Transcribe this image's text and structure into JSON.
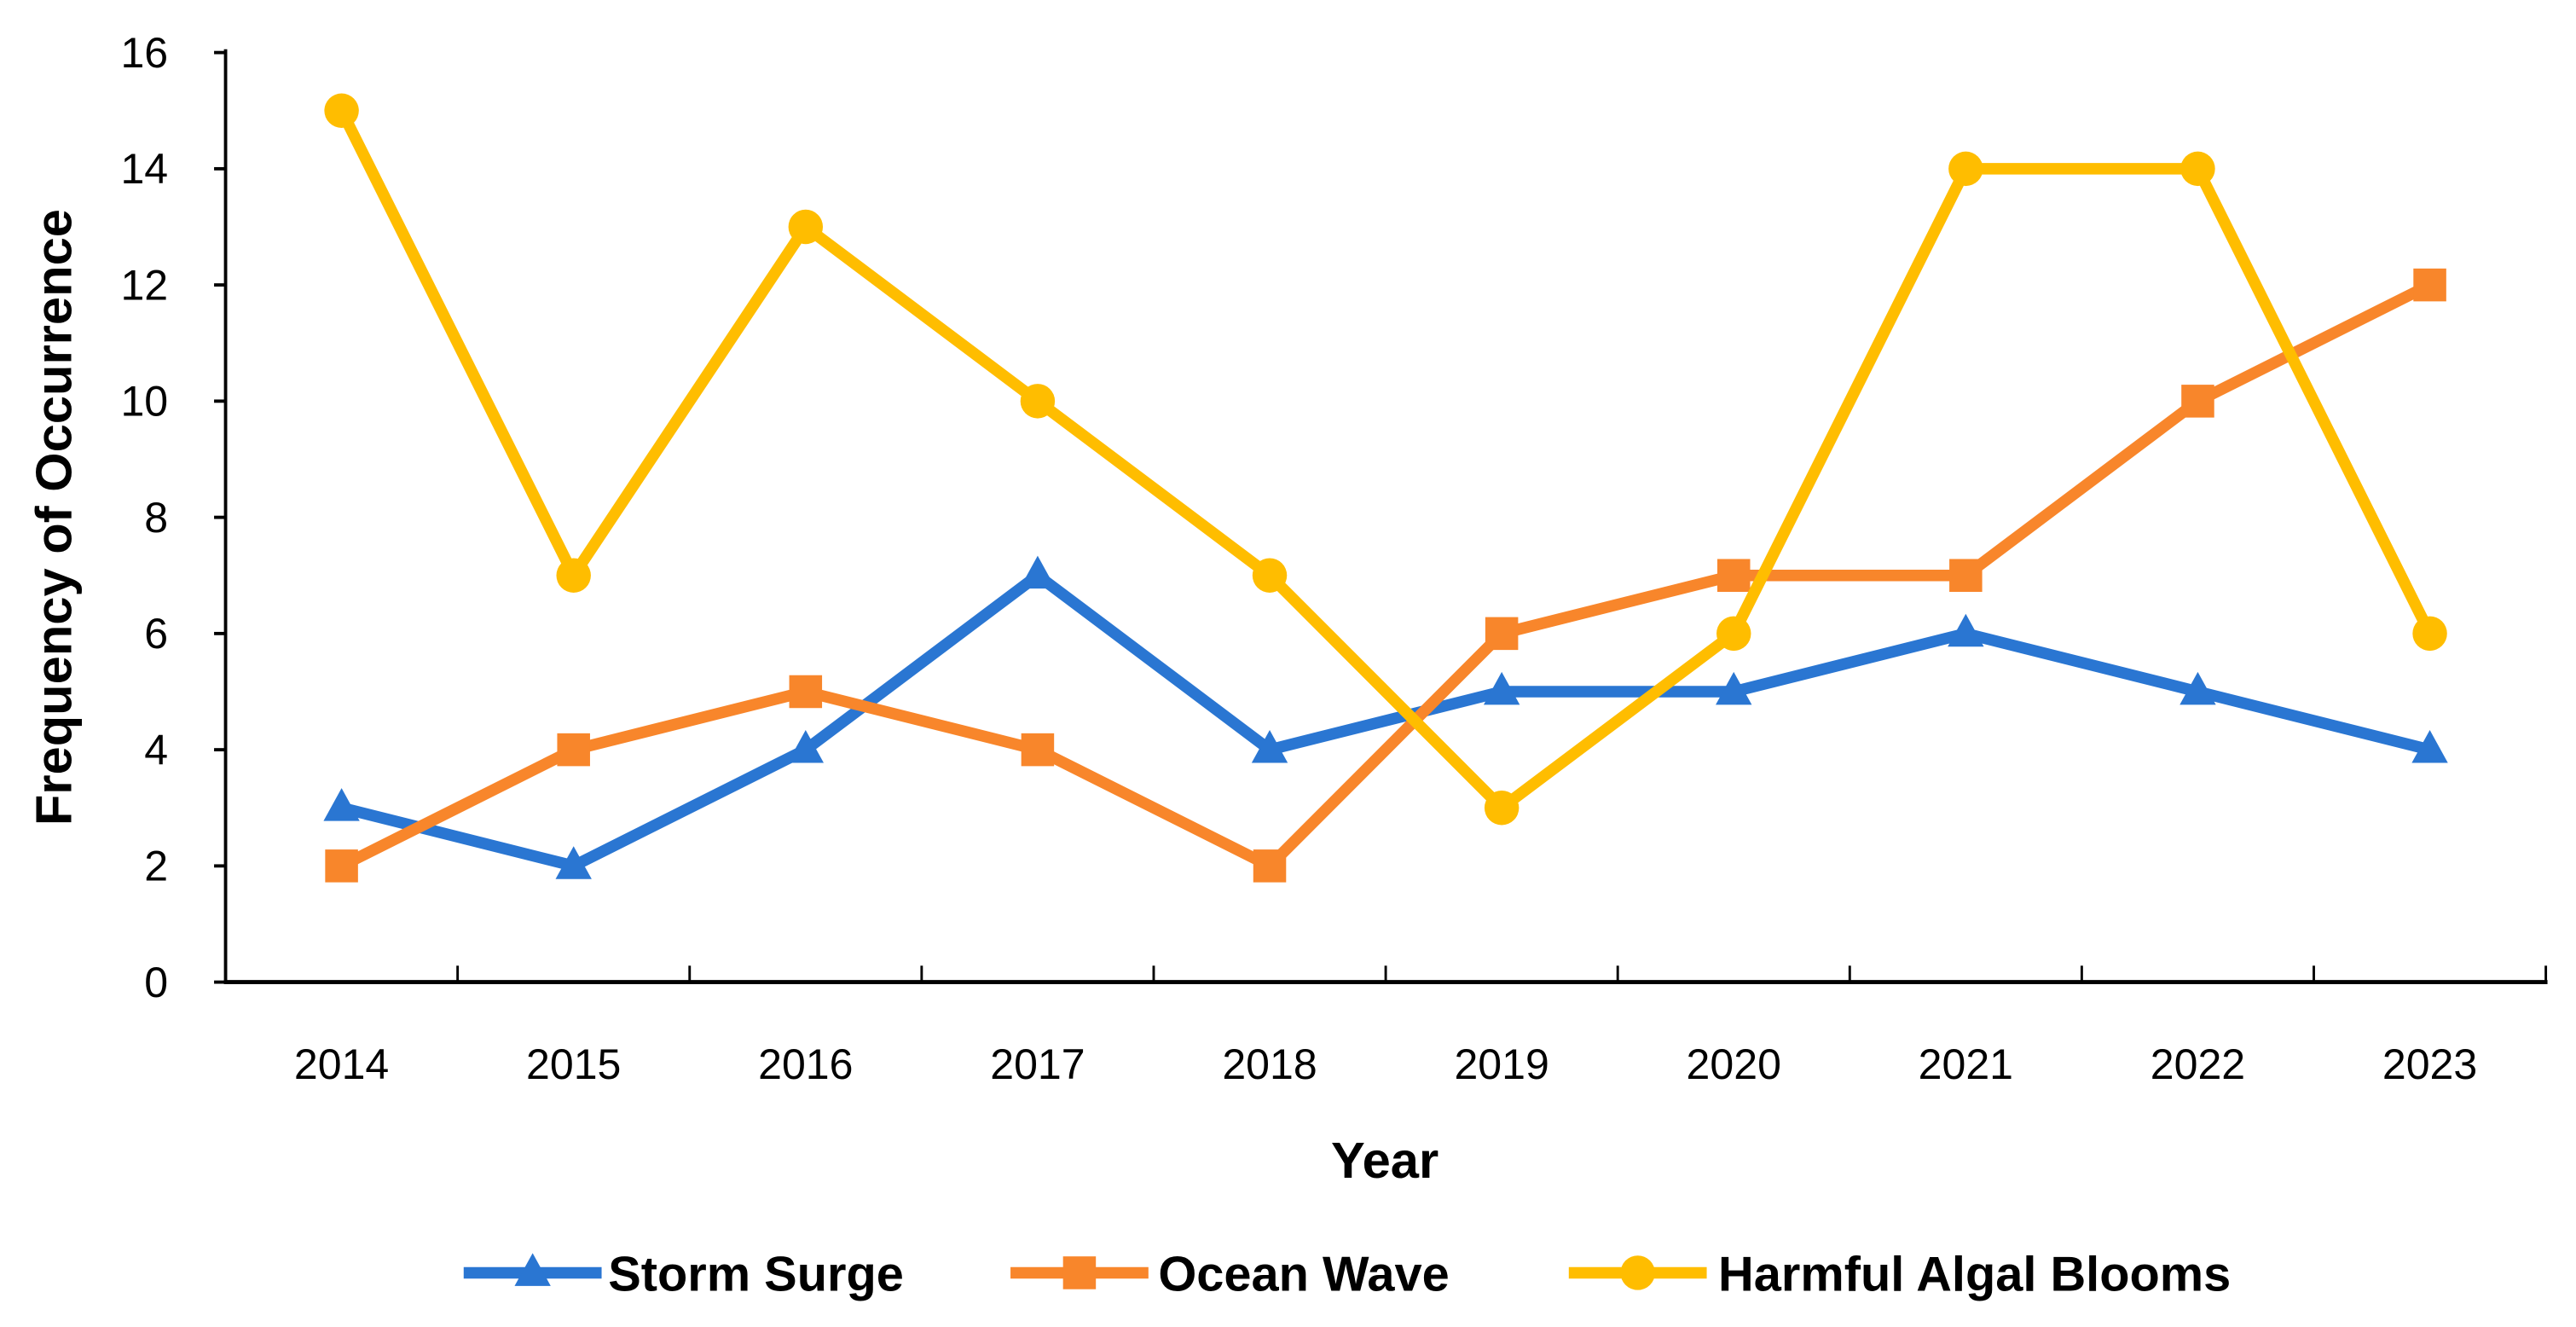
{
  "chart_data": {
    "type": "line",
    "title": "",
    "xlabel": "Year",
    "ylabel": "Frequency of Occurrence",
    "categories": [
      "2014",
      "2015",
      "2016",
      "2017",
      "2018",
      "2019",
      "2020",
      "2021",
      "2022",
      "2023"
    ],
    "ylim": [
      0,
      16
    ],
    "yticks": [
      0,
      2,
      4,
      6,
      8,
      10,
      12,
      14,
      16
    ],
    "grid": false,
    "legend_position": "bottom",
    "series": [
      {
        "name": "Storm Surge",
        "color": "#2A76D2",
        "marker": "triangle",
        "values": [
          3,
          2,
          4,
          7,
          4,
          5,
          5,
          6,
          5,
          4
        ]
      },
      {
        "name": "Ocean Wave",
        "color": "#F8862B",
        "marker": "square",
        "values": [
          2,
          4,
          5,
          4,
          2,
          6,
          7,
          7,
          10,
          12
        ]
      },
      {
        "name": "Harmful Algal Blooms",
        "color": "#FFBD00",
        "marker": "circle",
        "values": [
          15,
          7,
          13,
          10,
          7,
          3,
          6,
          14,
          14,
          6
        ]
      }
    ]
  }
}
